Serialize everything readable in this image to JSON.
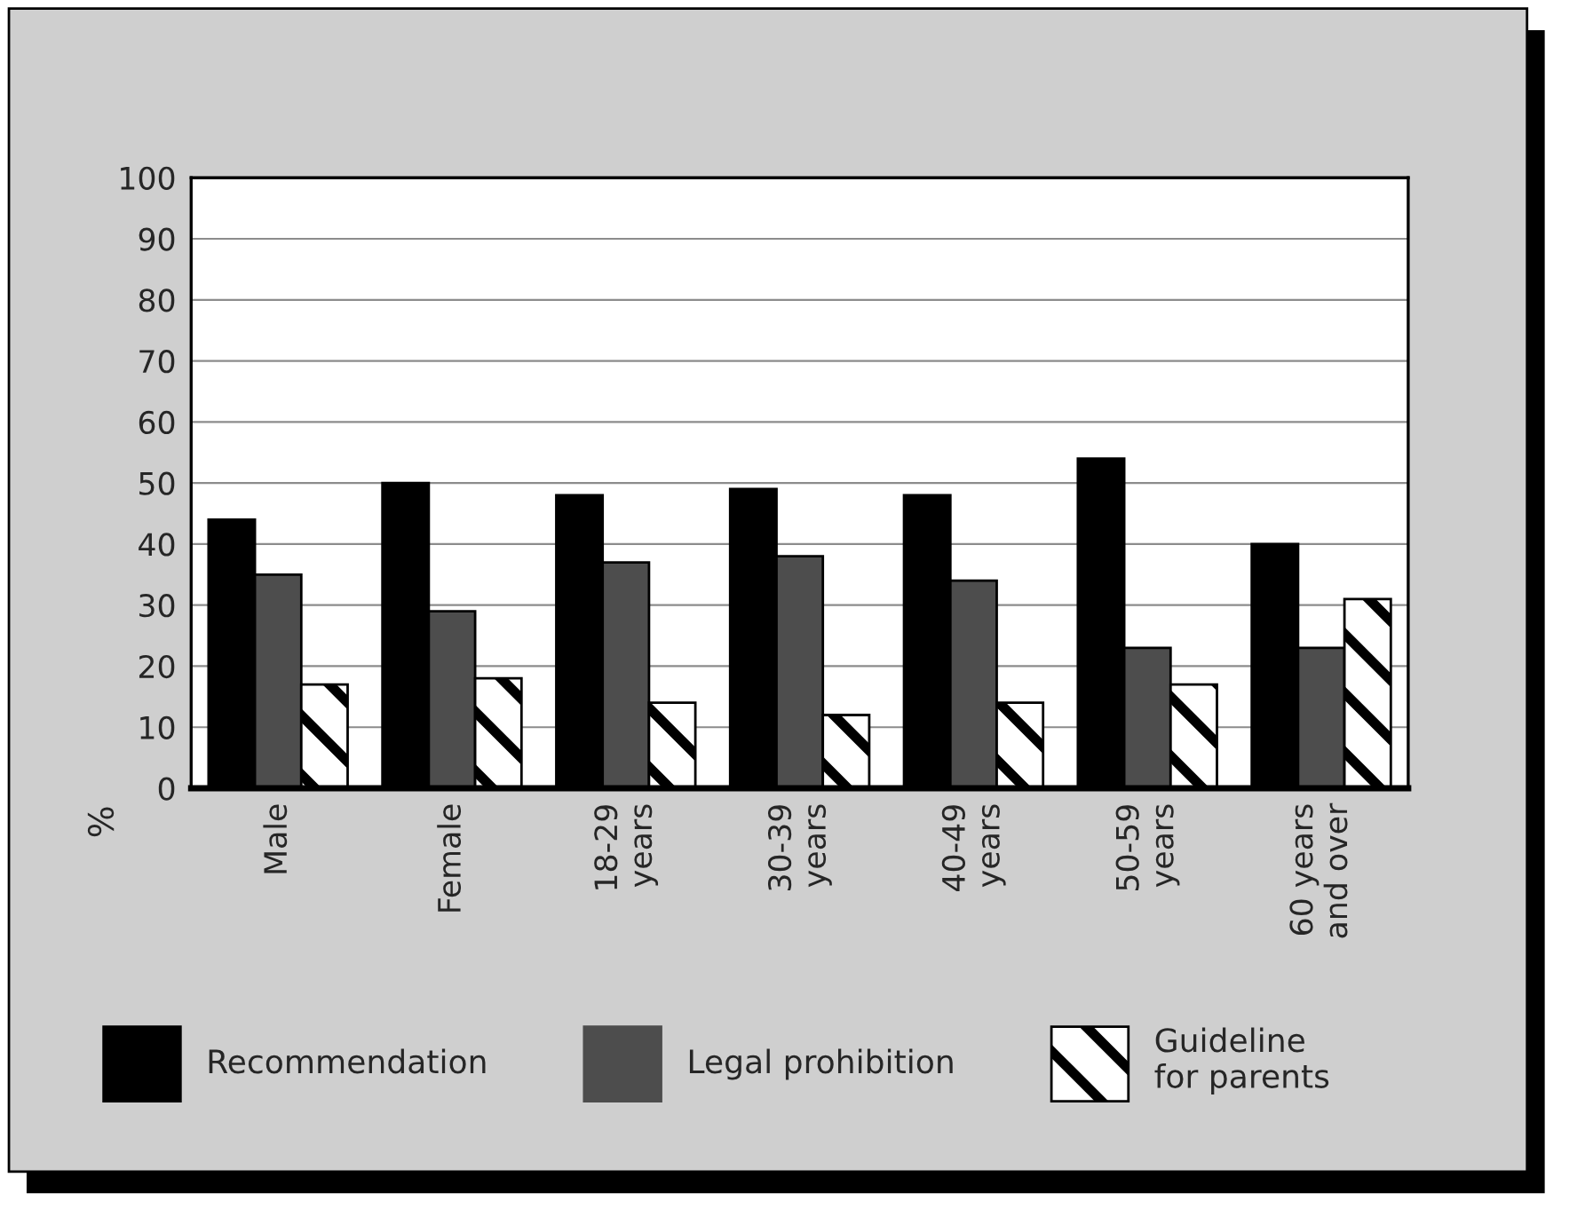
{
  "chart_data": {
    "type": "bar",
    "ylabel": "%",
    "categories": [
      "Male",
      "Female",
      "18-29 years",
      "30-39 years",
      "40-49 years",
      "50-59 years",
      "60 years and over"
    ],
    "series": [
      {
        "name": "Recommendation",
        "color": "#000000",
        "values": [
          44,
          50,
          48,
          49,
          48,
          54,
          40
        ]
      },
      {
        "name": "Legal prohibition",
        "color": "#4d4d4d",
        "values": [
          35,
          29,
          37,
          38,
          34,
          23,
          23
        ]
      },
      {
        "name": "Guideline for parents",
        "color": "#000000",
        "values": [
          17,
          18,
          14,
          12,
          14,
          17,
          31
        ]
      }
    ],
    "ylim": [
      0,
      100
    ],
    "yticks": [
      0,
      10,
      20,
      30,
      40,
      50,
      60,
      70,
      80,
      90,
      100
    ],
    "grid": "y",
    "legend": "bottom"
  }
}
